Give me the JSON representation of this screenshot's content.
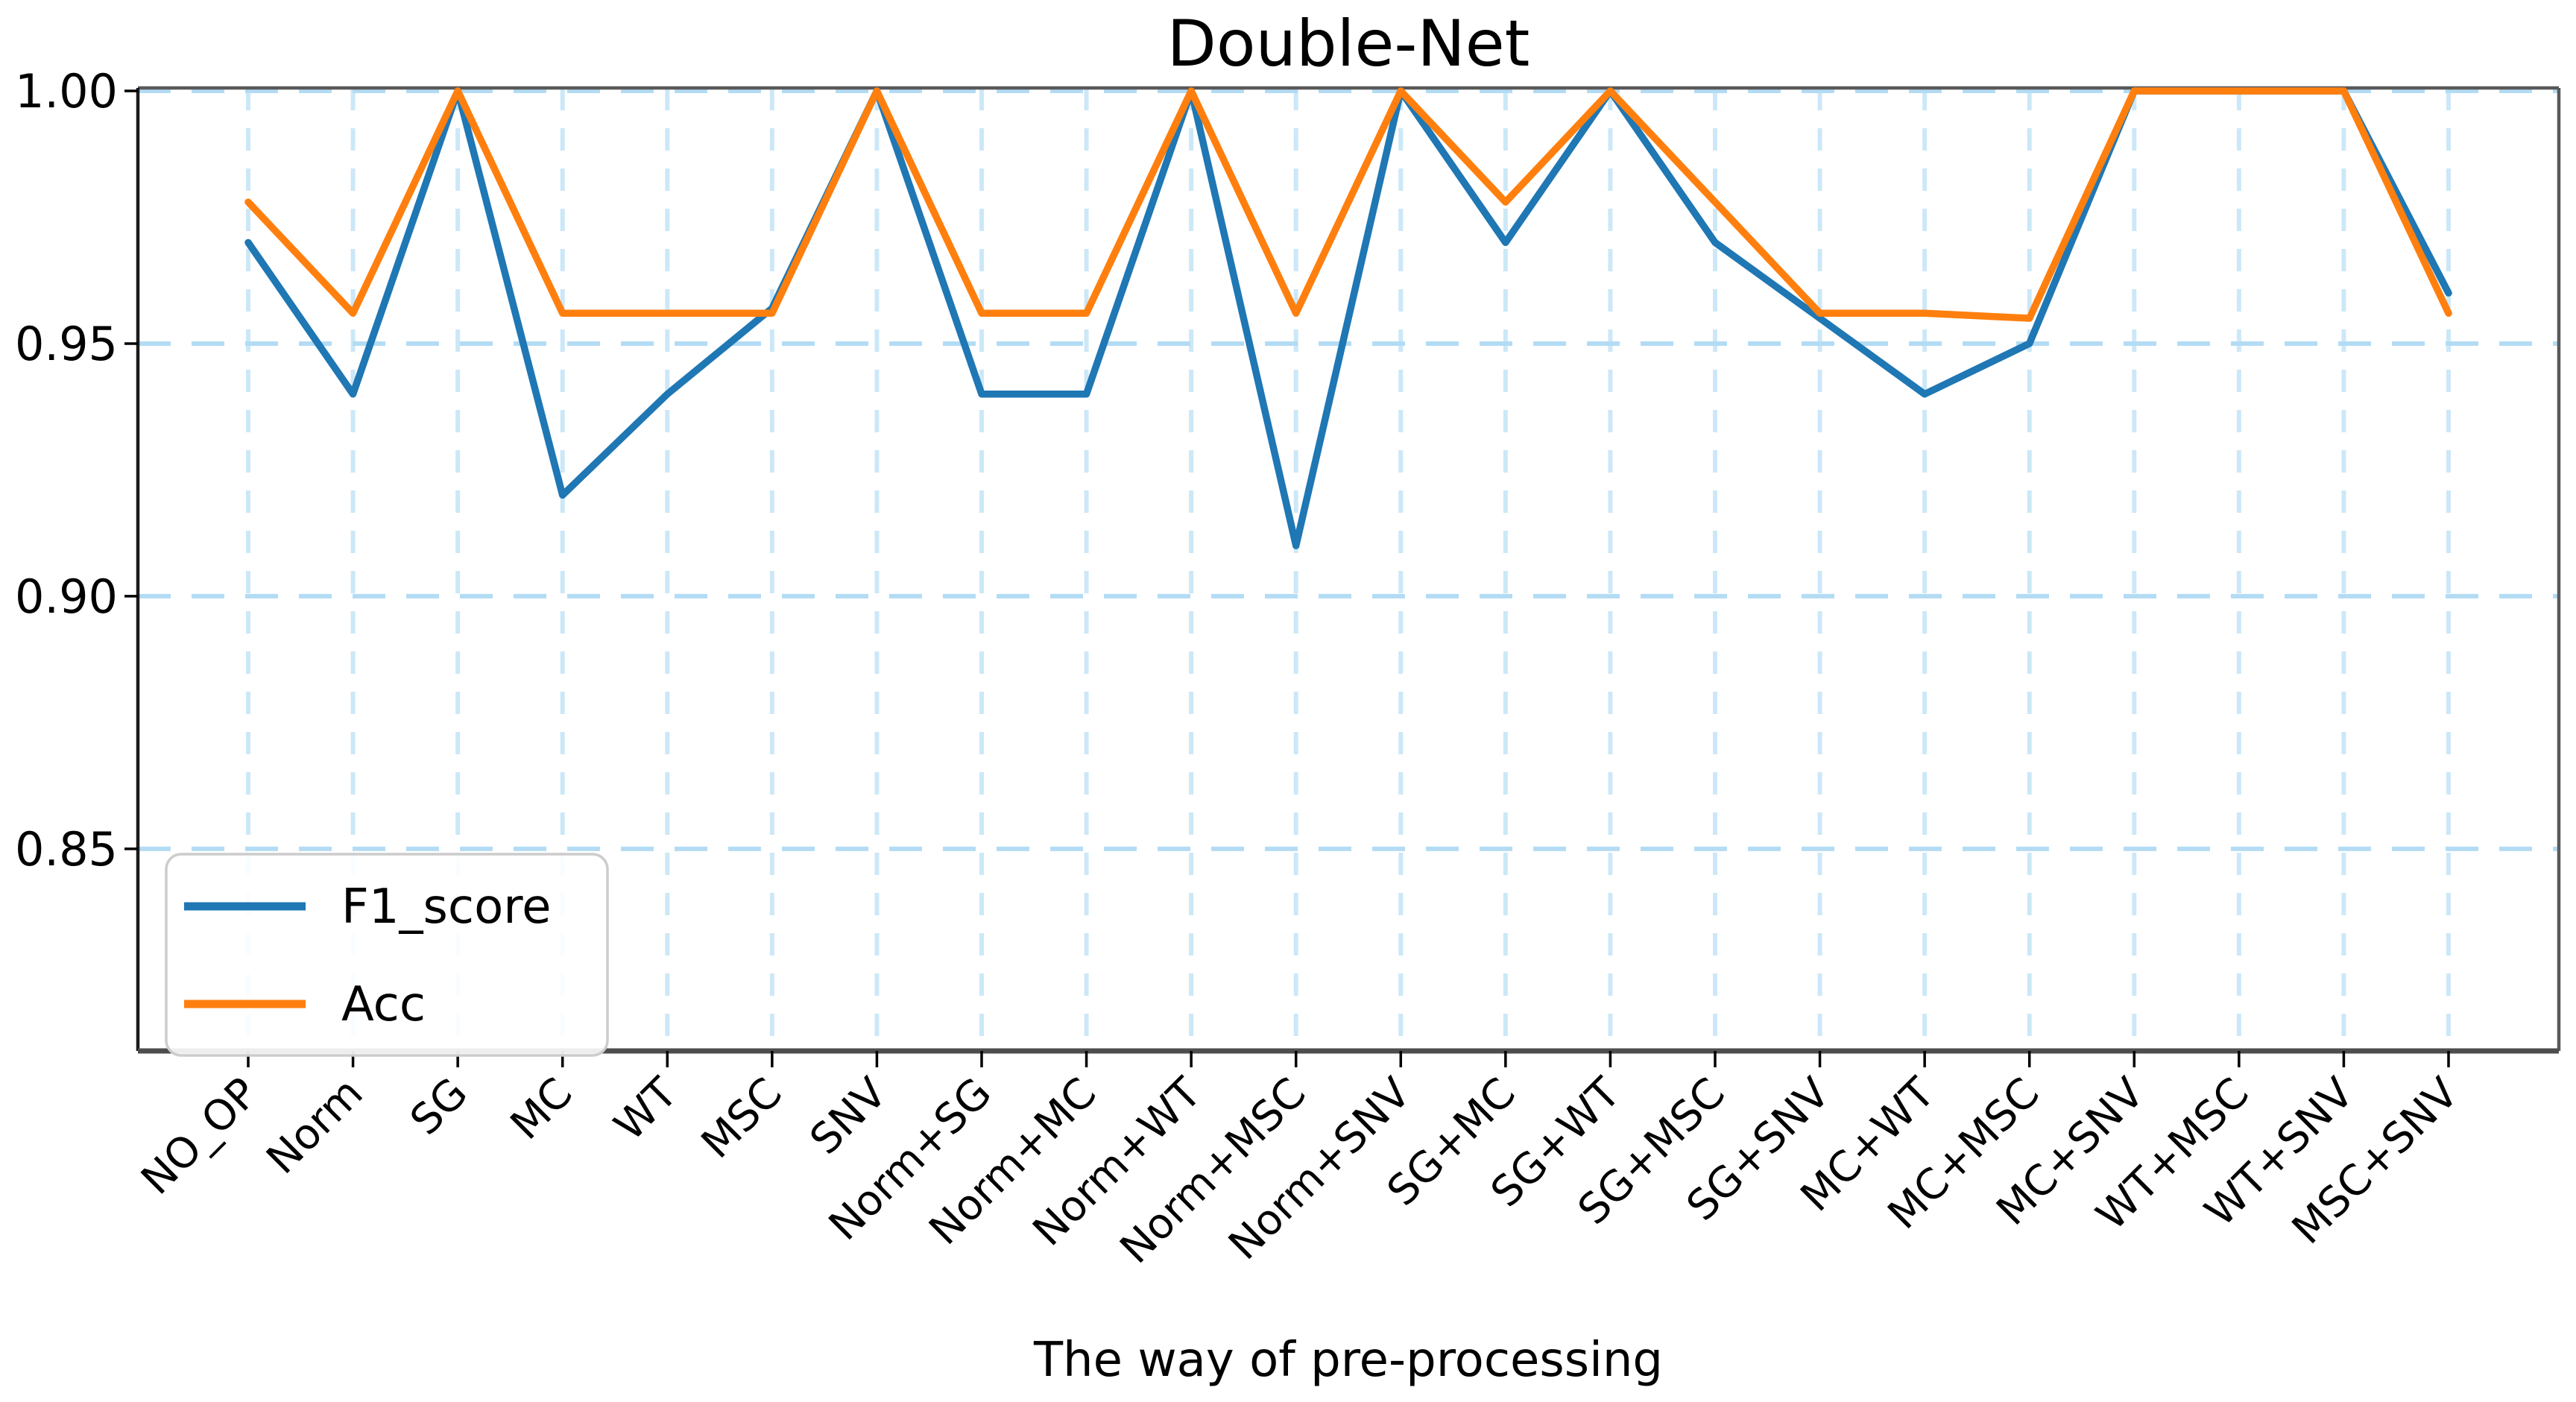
{
  "figure": {
    "background": "#ffffff",
    "text_color": "#000000"
  },
  "chart_data": {
    "type": "line",
    "title": "Double-Net",
    "xlabel": "The way of pre-processing",
    "ylabel": "",
    "categories": [
      "NO_OP",
      "Norm",
      "SG",
      "MC",
      "WT",
      "MSC",
      "SNV",
      "Norm+SG",
      "Norm+MC",
      "Norm+WT",
      "Norm+MSC",
      "Norm+SNV",
      "SG+MC",
      "SG+WT",
      "SG+MSC",
      "SG+SNV",
      "MC+WT",
      "MC+MSC",
      "MC+SNV",
      "WT+MSC",
      "WT+SNV",
      "MSC+SNV"
    ],
    "series": [
      {
        "name": "F1_score",
        "color": "#1f77b4",
        "values": [
          0.97,
          0.94,
          1.0,
          0.92,
          0.94,
          0.957,
          1.0,
          0.94,
          0.94,
          1.0,
          0.91,
          1.0,
          0.97,
          1.0,
          0.97,
          0.955,
          0.94,
          0.95,
          1.0,
          1.0,
          1.0,
          0.96
        ]
      },
      {
        "name": "Acc",
        "color": "#ff7f0e",
        "values": [
          0.978,
          0.956,
          1.0,
          0.956,
          0.956,
          0.956,
          1.0,
          0.956,
          0.956,
          1.0,
          0.956,
          1.0,
          0.978,
          1.0,
          0.978,
          0.956,
          0.956,
          0.955,
          1.0,
          1.0,
          1.0,
          0.956
        ]
      }
    ],
    "ylim": [
      0.81,
      1.0
    ],
    "yticks": {
      "values": [
        1.0,
        0.95,
        0.9,
        0.85
      ],
      "labels": [
        "1.00",
        "0.95",
        "0.90",
        "0.85"
      ]
    },
    "grid": {
      "horizontal_style": "dashed",
      "vertical_style": "dashed",
      "horizontal_color": "#b3dcf4",
      "vertical_color": "#cce8f8"
    },
    "legend": {
      "position": "lower-left",
      "entries": [
        "F1_score",
        "Acc"
      ]
    }
  }
}
